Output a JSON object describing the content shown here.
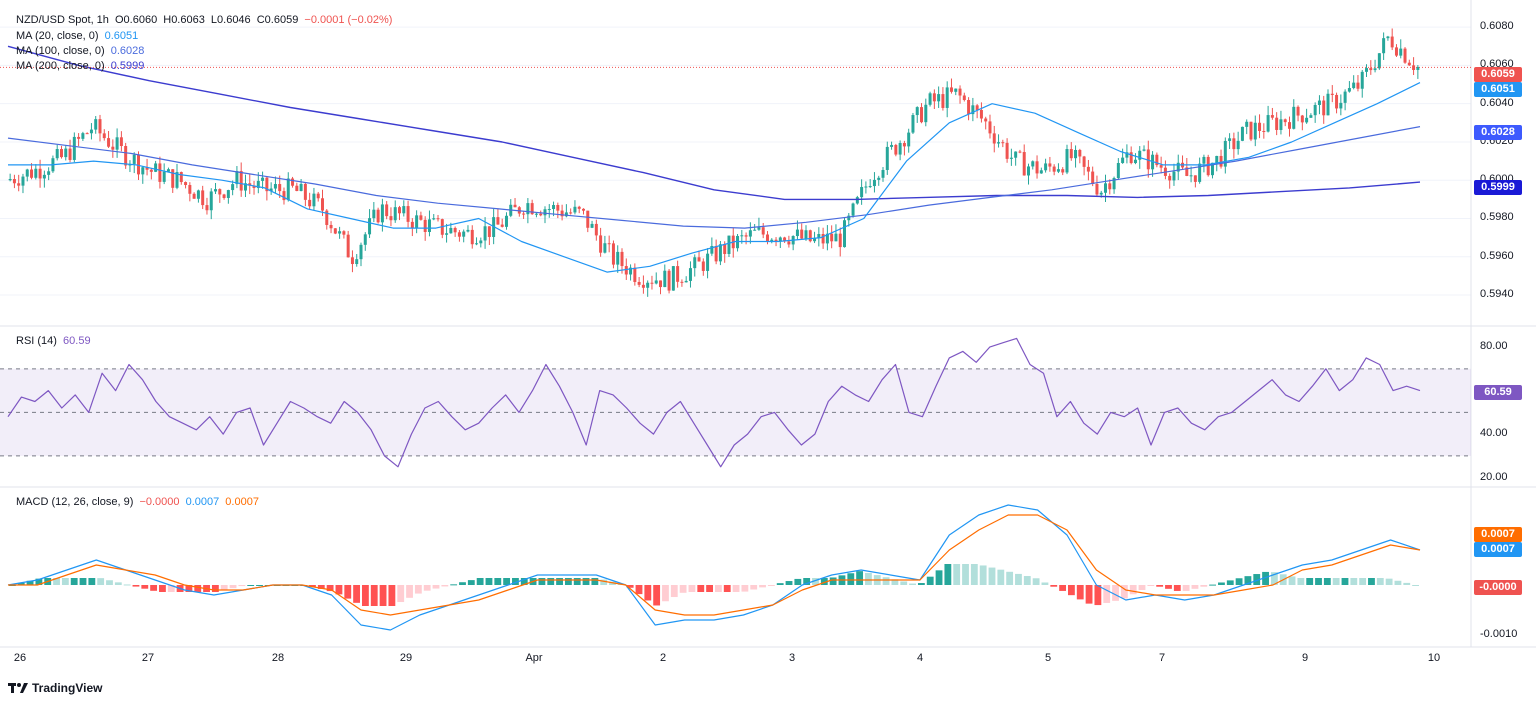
{
  "header": {
    "symbol": "NZD/USD Spot, 1h",
    "open": "O0.6060",
    "high": "H0.6063",
    "low": "L0.6046",
    "close": "C0.6059",
    "change": "−0.0001 (−0.02%)",
    "ma20_label": "MA (20, close, 0)",
    "ma20_value": "0.6051",
    "ma100_label": "MA (100, close, 0)",
    "ma100_value": "0.6028",
    "ma200_label": "MA (200, close, 0)",
    "ma200_value": "0.5999",
    "rsi_label": "RSI (14)",
    "rsi_value": "60.59",
    "macd_label": "MACD (12, 26, close, 9)",
    "macd_hist": "−0.0000",
    "macd_line": "0.0007",
    "macd_signal": "0.0007"
  },
  "badges": {
    "price": "0.6059",
    "ma20": "0.6051",
    "ma100": "0.6028",
    "ma200": "0.5999",
    "rsi": "60.59",
    "macd_signal": "0.0007",
    "macd_line": "0.0007",
    "macd_hist": "-0.0000"
  },
  "colors": {
    "up": "#26a69a",
    "down": "#ef5350",
    "ma20": "#2196f3",
    "ma100": "#4a6bdd",
    "ma200": "#3c3ccf",
    "rsi": "#7e57c2",
    "macd": "#2196f3",
    "signal": "#ff6d00"
  },
  "brand": "TradingView",
  "chart_data": [
    {
      "type": "candlestick",
      "title": "NZD/USD Spot, 1h",
      "x_ticks": [
        "26",
        "27",
        "28",
        "29",
        "Apr",
        "2",
        "3",
        "4",
        "5",
        "7",
        "9",
        "10"
      ],
      "y_ticks": [
        "0.6080",
        "0.6060",
        "0.6040",
        "0.6020",
        "0.6000",
        "0.5980",
        "0.5960",
        "0.5940"
      ],
      "ylim": [
        0.5928,
        0.609
      ],
      "close_path": [
        0.6,
        0.6005,
        0.6012,
        0.6028,
        0.6015,
        0.6005,
        0.6,
        0.599,
        0.6,
        0.5995,
        0.5995,
        0.5985,
        0.596,
        0.5985,
        0.598,
        0.5975,
        0.5972,
        0.5975,
        0.5988,
        0.5985,
        0.5982,
        0.596,
        0.595,
        0.5948,
        0.5955,
        0.5965,
        0.5972,
        0.5972,
        0.5968,
        0.597,
        0.6002,
        0.602,
        0.604,
        0.6045,
        0.603,
        0.601,
        0.6005,
        0.6012,
        0.5995,
        0.6015,
        0.6008,
        0.6002,
        0.601,
        0.6025,
        0.603,
        0.6035,
        0.604,
        0.605,
        0.6075,
        0.6059
      ],
      "ma20": [
        0.6008,
        0.6008,
        0.601,
        0.6008,
        0.6003,
        0.6,
        0.5996,
        0.5985,
        0.598,
        0.5975,
        0.5975,
        0.598,
        0.5968,
        0.596,
        0.5952,
        0.5955,
        0.5962,
        0.5968,
        0.5968,
        0.597,
        0.598,
        0.601,
        0.603,
        0.604,
        0.6035,
        0.6025,
        0.6015,
        0.6008,
        0.6008,
        0.6012,
        0.602,
        0.603,
        0.604,
        0.6051
      ],
      "ma100": [
        0.6022,
        0.6018,
        0.6014,
        0.6008,
        0.6003,
        0.5998,
        0.5992,
        0.5988,
        0.5985,
        0.5982,
        0.5979,
        0.5976,
        0.5975,
        0.5978,
        0.5982,
        0.5987,
        0.5991,
        0.5995,
        0.6,
        0.6005,
        0.601,
        0.6016,
        0.6022,
        0.6028
      ],
      "ma200": [
        0.607,
        0.606,
        0.6052,
        0.6045,
        0.6038,
        0.6032,
        0.6026,
        0.602,
        0.6012,
        0.6004,
        0.5995,
        0.599,
        0.599,
        0.5991,
        0.5992,
        0.5992,
        0.5991,
        0.5992,
        0.5994,
        0.5996,
        0.5999
      ]
    },
    {
      "type": "line",
      "title": "RSI (14)",
      "y_ticks": [
        "80.00",
        "40.00",
        "20.00"
      ],
      "ylim": [
        18,
        86
      ],
      "levels": [
        70,
        50,
        30
      ],
      "values": [
        48,
        57,
        55,
        60,
        52,
        58,
        50,
        68,
        60,
        72,
        65,
        55,
        48,
        45,
        42,
        48,
        40,
        50,
        52,
        35,
        45,
        55,
        52,
        48,
        45,
        55,
        50,
        42,
        30,
        25,
        40,
        52,
        55,
        48,
        42,
        45,
        52,
        58,
        50,
        60,
        72,
        62,
        50,
        35,
        60,
        58,
        52,
        45,
        40,
        50,
        55,
        45,
        35,
        25,
        35,
        40,
        48,
        50,
        42,
        35,
        40,
        55,
        62,
        58,
        55,
        65,
        72,
        50,
        48,
        62,
        75,
        78,
        73,
        80,
        82,
        84,
        72,
        68,
        48,
        55,
        45,
        40,
        50,
        48,
        52,
        35,
        50,
        52,
        45,
        42,
        48,
        50,
        55,
        60,
        65,
        58,
        55,
        62,
        70,
        60,
        65,
        75,
        72,
        60,
        62,
        60
      ]
    },
    {
      "type": "macd",
      "title": "MACD (12, 26, close, 9)",
      "y_ticks": [
        "-0.0010"
      ],
      "ylim": [
        -0.0012,
        0.0018
      ],
      "macd": [
        0.0,
        0.0001,
        0.0003,
        0.0005,
        0.0003,
        0.0001,
        -0.0001,
        -0.0002,
        -0.0001,
        0.0,
        0.0,
        -0.0002,
        -0.0008,
        -0.0009,
        -0.0006,
        -0.0004,
        -0.0002,
        0.0,
        0.0002,
        0.0002,
        0.0002,
        0.0,
        -0.0008,
        -0.0007,
        -0.0007,
        -0.0006,
        -0.0004,
        0.0,
        0.0002,
        0.0003,
        0.0002,
        0.0001,
        0.001,
        0.0014,
        0.0016,
        0.0015,
        0.001,
        0.0,
        -0.0003,
        -0.0002,
        -0.0003,
        -0.0002,
        0.0,
        0.0002,
        0.0004,
        0.0005,
        0.0007,
        0.0009,
        0.0007
      ],
      "signal": [
        0.0,
        0.0,
        0.0002,
        0.0004,
        0.0003,
        0.0002,
        0.0,
        -0.0001,
        -0.0001,
        0.0,
        0.0,
        -0.0001,
        -0.0005,
        -0.0006,
        -0.0005,
        -0.0004,
        -0.0003,
        -0.0001,
        0.0001,
        0.0001,
        0.0001,
        0.0,
        -0.0005,
        -0.0006,
        -0.0006,
        -0.0005,
        -0.0004,
        -0.0001,
        0.0001,
        0.0001,
        0.0001,
        0.0001,
        0.0007,
        0.0011,
        0.0014,
        0.0014,
        0.0011,
        0.0003,
        -0.0001,
        -0.0002,
        -0.0002,
        -0.0002,
        -0.0001,
        0.0,
        0.0003,
        0.0004,
        0.0006,
        0.0008,
        0.0007
      ]
    }
  ]
}
